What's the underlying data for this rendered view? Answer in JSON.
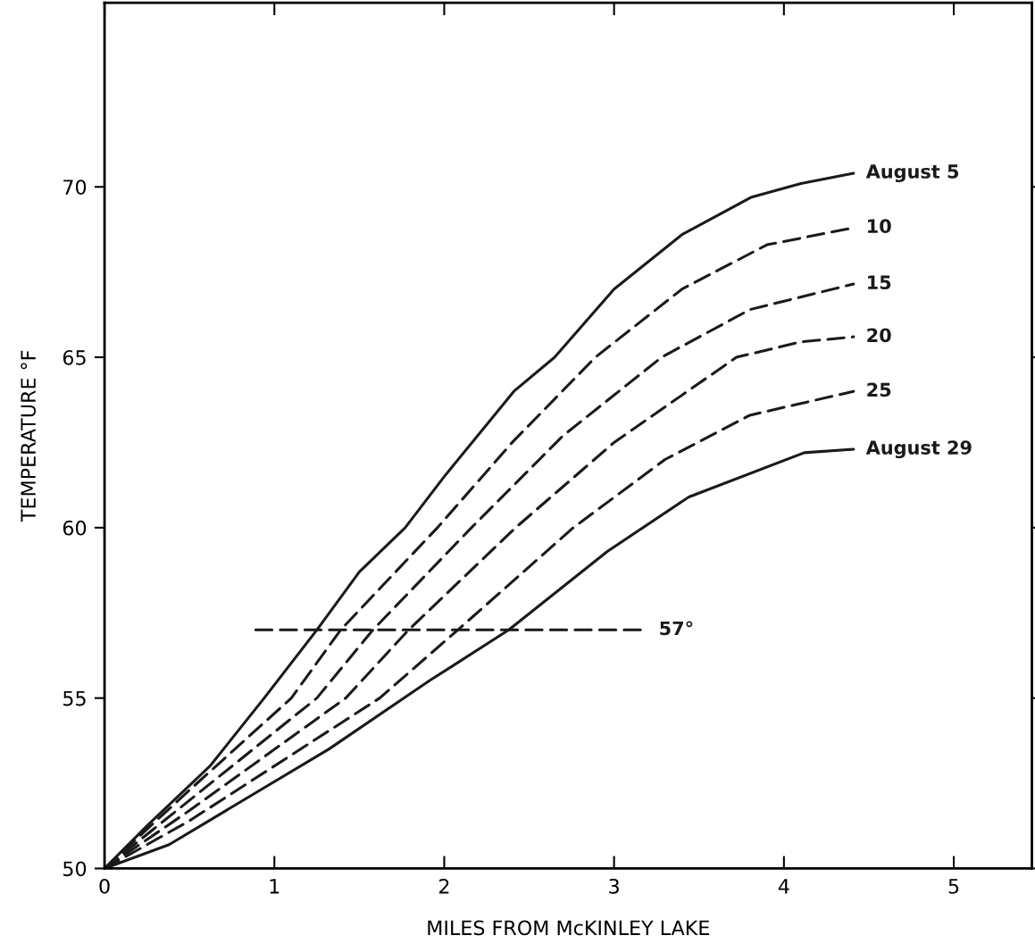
{
  "chart_data": {
    "type": "line",
    "xlabel": "MILES FROM McKINLEY LAKE",
    "ylabel": "TEMPERATURE °F",
    "xlim": [
      0,
      5.46
    ],
    "ylim": [
      50,
      75.4
    ],
    "xticks": [
      0,
      1,
      2,
      3,
      4,
      5
    ],
    "yticks": [
      50,
      55,
      60,
      65,
      70
    ],
    "grid": false,
    "legend": false,
    "marker": "none",
    "series": [
      {
        "name": "August 5",
        "color": "#1a1a1a",
        "line_style": "solid",
        "x": [
          0,
          0.26,
          0.62,
          0.94,
          1.25,
          1.5,
          1.77,
          2.0,
          2.41,
          2.65,
          3.0,
          3.4,
          3.81,
          4.1,
          4.41
        ],
        "values": [
          50,
          51.3,
          53,
          55,
          57,
          58.7,
          60,
          61.5,
          64,
          65,
          67,
          68.6,
          69.7,
          70.1,
          70.4
        ]
      },
      {
        "name": "10",
        "color": "#1a1a1a",
        "line_style": "dashed",
        "x": [
          0,
          0.5,
          1.1,
          1.39,
          1.96,
          2.4,
          2.89,
          3.4,
          3.9,
          4.41
        ],
        "values": [
          50,
          52.3,
          55,
          57,
          60,
          62.5,
          65,
          67,
          68.3,
          68.8
        ]
      },
      {
        "name": "15",
        "color": "#1a1a1a",
        "line_style": "dashed",
        "x": [
          0,
          0.5,
          1.25,
          1.58,
          2.16,
          2.7,
          3.28,
          3.8,
          4.41
        ],
        "values": [
          50,
          52.0,
          55,
          57,
          60,
          62.7,
          65,
          66.4,
          67.15
        ]
      },
      {
        "name": "20",
        "color": "#1a1a1a",
        "line_style": "dashed",
        "x": [
          0,
          0.5,
          1.42,
          1.79,
          2.42,
          3.0,
          3.72,
          4.1,
          4.41
        ],
        "values": [
          50,
          51.7,
          55,
          57,
          60,
          62.5,
          65,
          65.45,
          65.6
        ]
      },
      {
        "name": "25",
        "color": "#1a1a1a",
        "line_style": "dashed",
        "x": [
          0,
          0.5,
          1.62,
          2.08,
          2.76,
          3.3,
          3.8,
          4.41
        ],
        "values": [
          50,
          51.4,
          55,
          57,
          60,
          62.0,
          63.3,
          64.0
        ]
      },
      {
        "name": "August 29",
        "color": "#1a1a1a",
        "line_style": "solid",
        "x": [
          0,
          0.38,
          0.85,
          1.32,
          1.91,
          2.38,
          2.96,
          3.44,
          4.12,
          4.41
        ],
        "values": [
          50,
          50.7,
          52.1,
          53.5,
          55.5,
          57.0,
          59.3,
          60.9,
          62.2,
          62.3
        ]
      },
      {
        "name": "57°",
        "color": "#1a1a1a",
        "line_style": "dashed",
        "x": [
          0.89,
          3.19
        ],
        "values": [
          57,
          57
        ]
      }
    ]
  }
}
